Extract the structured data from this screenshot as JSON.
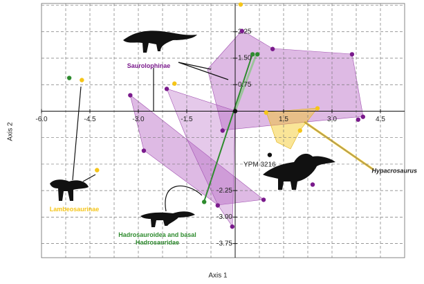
{
  "chart_data": {
    "type": "scatter",
    "x_label": "Axis 1",
    "y_label": "Axis 2",
    "xlim": [
      -6.0,
      5.25
    ],
    "ylim": [
      -4.15,
      3.05
    ],
    "xticks": [
      {
        "value": -6,
        "label": "-6.0"
      },
      {
        "value": -4.5,
        "label": "-4.5"
      },
      {
        "value": -3,
        "label": "-3.0"
      },
      {
        "value": -1.5,
        "label": "-1.5"
      },
      1.5,
      {
        "value": 3,
        "label": "3.0"
      },
      4.5
    ],
    "yticks": [
      2.25,
      {
        "value": 1.5,
        "label": "1.50"
      },
      0.75,
      -2.25,
      {
        "value": -3,
        "label": "-3.00"
      },
      -3.75
    ],
    "x_grid": [
      -5.25,
      -4.5,
      -3.75,
      -3,
      -2.25,
      -1.5,
      -0.75,
      0.75,
      1.5,
      2.25,
      3,
      3.75,
      4.5
    ],
    "y_grid": [
      3,
      2.25,
      1.5,
      0.75,
      -0.75,
      -1.5,
      -2.25,
      -3,
      -3.75
    ],
    "grid": true,
    "series": [
      {
        "name": "Saurolophinae",
        "color": "#7a1a8c",
        "x": [
          1.16,
          3.62,
          3.96,
          3.81,
          -0.39,
          -2.12,
          -3.25,
          -2.83,
          -0.54,
          -0.09,
          0.88,
          2.4,
          0.21
        ],
        "values": [
          1.76,
          1.61,
          -0.16,
          -0.24,
          -0.55,
          0.63,
          0.45,
          -1.12,
          -2.67,
          -3.27,
          -2.51,
          -2.08,
          2.27
        ]
      },
      {
        "name": "Lambeosaurinae",
        "color": "#f5c518",
        "x": [
          0.17,
          -1.88,
          -4.75,
          -4.28,
          0.96,
          2.55,
          2.01
        ],
        "values": [
          3.02,
          0.78,
          0.88,
          -1.67,
          -0.04,
          0.08,
          -0.55
        ]
      },
      {
        "name": "Hadrosauroidea and basal Hadrosauridae",
        "color": "#2e8b2e",
        "x": [
          -5.14,
          0.54,
          0.69,
          -0.96
        ],
        "values": [
          0.94,
          1.61,
          1.61,
          -2.57
        ]
      },
      {
        "color": "#111111",
        "x": [
          0,
          1.07
        ],
        "values": [
          0,
          -1.24
        ]
      }
    ],
    "annotations": [
      {
        "text": "YPM 3216"
      },
      {
        "text": "Hypacrosaurus"
      }
    ]
  }
}
